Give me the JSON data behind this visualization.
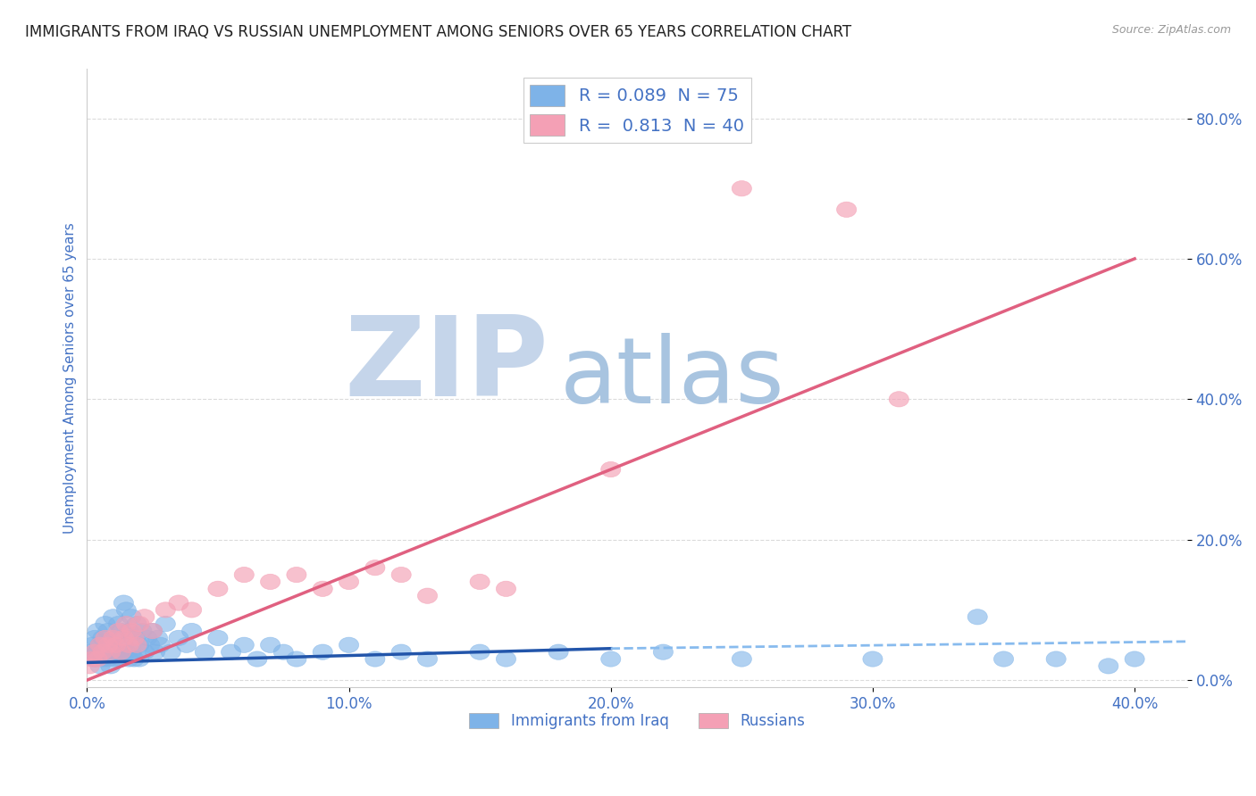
{
  "title": "IMMIGRANTS FROM IRAQ VS RUSSIAN UNEMPLOYMENT AMONG SENIORS OVER 65 YEARS CORRELATION CHART",
  "source": "Source: ZipAtlas.com",
  "xlabel_ticks": [
    "0.0%",
    "10.0%",
    "20.0%",
    "30.0%",
    "40.0%"
  ],
  "ylabel_ticks": [
    "0.0%",
    "20.0%",
    "40.0%",
    "60.0%",
    "80.0%"
  ],
  "xlim": [
    0.0,
    0.42
  ],
  "ylim": [
    -0.01,
    0.87
  ],
  "ylabel": "Unemployment Among Seniors over 65 years",
  "legend_label1": "R = 0.089  N = 75",
  "legend_label2": "R =  0.813  N = 40",
  "watermark_zip": "ZIP",
  "watermark_atlas": "atlas",
  "blue_scatter": [
    [
      0.001,
      0.04
    ],
    [
      0.002,
      0.05
    ],
    [
      0.003,
      0.06
    ],
    [
      0.003,
      0.03
    ],
    [
      0.004,
      0.07
    ],
    [
      0.004,
      0.04
    ],
    [
      0.005,
      0.05
    ],
    [
      0.005,
      0.02
    ],
    [
      0.006,
      0.06
    ],
    [
      0.006,
      0.03
    ],
    [
      0.007,
      0.08
    ],
    [
      0.007,
      0.04
    ],
    [
      0.008,
      0.07
    ],
    [
      0.008,
      0.03
    ],
    [
      0.009,
      0.05
    ],
    [
      0.009,
      0.02
    ],
    [
      0.01,
      0.09
    ],
    [
      0.01,
      0.04
    ],
    [
      0.011,
      0.06
    ],
    [
      0.011,
      0.03
    ],
    [
      0.012,
      0.08
    ],
    [
      0.012,
      0.04
    ],
    [
      0.013,
      0.07
    ],
    [
      0.013,
      0.03
    ],
    [
      0.014,
      0.11
    ],
    [
      0.014,
      0.05
    ],
    [
      0.015,
      0.1
    ],
    [
      0.015,
      0.04
    ],
    [
      0.016,
      0.07
    ],
    [
      0.016,
      0.03
    ],
    [
      0.017,
      0.09
    ],
    [
      0.017,
      0.04
    ],
    [
      0.018,
      0.06
    ],
    [
      0.018,
      0.03
    ],
    [
      0.019,
      0.08
    ],
    [
      0.02,
      0.05
    ],
    [
      0.02,
      0.03
    ],
    [
      0.021,
      0.07
    ],
    [
      0.022,
      0.04
    ],
    [
      0.023,
      0.06
    ],
    [
      0.024,
      0.05
    ],
    [
      0.025,
      0.07
    ],
    [
      0.026,
      0.04
    ],
    [
      0.027,
      0.06
    ],
    [
      0.028,
      0.05
    ],
    [
      0.03,
      0.08
    ],
    [
      0.032,
      0.04
    ],
    [
      0.035,
      0.06
    ],
    [
      0.038,
      0.05
    ],
    [
      0.04,
      0.07
    ],
    [
      0.045,
      0.04
    ],
    [
      0.05,
      0.06
    ],
    [
      0.055,
      0.04
    ],
    [
      0.06,
      0.05
    ],
    [
      0.065,
      0.03
    ],
    [
      0.07,
      0.05
    ],
    [
      0.075,
      0.04
    ],
    [
      0.08,
      0.03
    ],
    [
      0.09,
      0.04
    ],
    [
      0.1,
      0.05
    ],
    [
      0.11,
      0.03
    ],
    [
      0.12,
      0.04
    ],
    [
      0.13,
      0.03
    ],
    [
      0.15,
      0.04
    ],
    [
      0.16,
      0.03
    ],
    [
      0.18,
      0.04
    ],
    [
      0.2,
      0.03
    ],
    [
      0.22,
      0.04
    ],
    [
      0.25,
      0.03
    ],
    [
      0.3,
      0.03
    ],
    [
      0.35,
      0.03
    ],
    [
      0.34,
      0.09
    ],
    [
      0.37,
      0.03
    ],
    [
      0.39,
      0.02
    ],
    [
      0.4,
      0.03
    ]
  ],
  "pink_scatter": [
    [
      0.001,
      0.02
    ],
    [
      0.002,
      0.03
    ],
    [
      0.003,
      0.04
    ],
    [
      0.004,
      0.03
    ],
    [
      0.005,
      0.05
    ],
    [
      0.006,
      0.04
    ],
    [
      0.007,
      0.06
    ],
    [
      0.008,
      0.05
    ],
    [
      0.009,
      0.04
    ],
    [
      0.01,
      0.06
    ],
    [
      0.011,
      0.05
    ],
    [
      0.012,
      0.07
    ],
    [
      0.013,
      0.04
    ],
    [
      0.014,
      0.06
    ],
    [
      0.015,
      0.08
    ],
    [
      0.016,
      0.05
    ],
    [
      0.017,
      0.07
    ],
    [
      0.018,
      0.06
    ],
    [
      0.019,
      0.05
    ],
    [
      0.02,
      0.08
    ],
    [
      0.022,
      0.09
    ],
    [
      0.025,
      0.07
    ],
    [
      0.03,
      0.1
    ],
    [
      0.035,
      0.11
    ],
    [
      0.04,
      0.1
    ],
    [
      0.05,
      0.13
    ],
    [
      0.06,
      0.15
    ],
    [
      0.07,
      0.14
    ],
    [
      0.08,
      0.15
    ],
    [
      0.09,
      0.13
    ],
    [
      0.1,
      0.14
    ],
    [
      0.11,
      0.16
    ],
    [
      0.12,
      0.15
    ],
    [
      0.13,
      0.12
    ],
    [
      0.15,
      0.14
    ],
    [
      0.16,
      0.13
    ],
    [
      0.2,
      0.3
    ],
    [
      0.25,
      0.7
    ],
    [
      0.29,
      0.67
    ],
    [
      0.31,
      0.4
    ]
  ],
  "blue_solid_line": {
    "x": [
      0.0,
      0.2
    ],
    "y": [
      0.025,
      0.045
    ]
  },
  "blue_dash_line": {
    "x": [
      0.2,
      0.42
    ],
    "y": [
      0.045,
      0.055
    ]
  },
  "pink_line": {
    "x": [
      0.0,
      0.4
    ],
    "y": [
      0.0,
      0.6
    ]
  },
  "blue_scatter_color": "#7EB3E8",
  "pink_scatter_color": "#F4A0B5",
  "blue_solid_color": "#2255AA",
  "blue_dash_color": "#88BBEE",
  "pink_line_color": "#E06080",
  "grid_color": "#CCCCCC",
  "axis_label_color": "#4472C4",
  "tick_label_color": "#4472C4",
  "title_color": "#222222",
  "watermark_zip_color": "#C5D5EA",
  "watermark_atlas_color": "#A8C4E0",
  "background_color": "#FFFFFF"
}
